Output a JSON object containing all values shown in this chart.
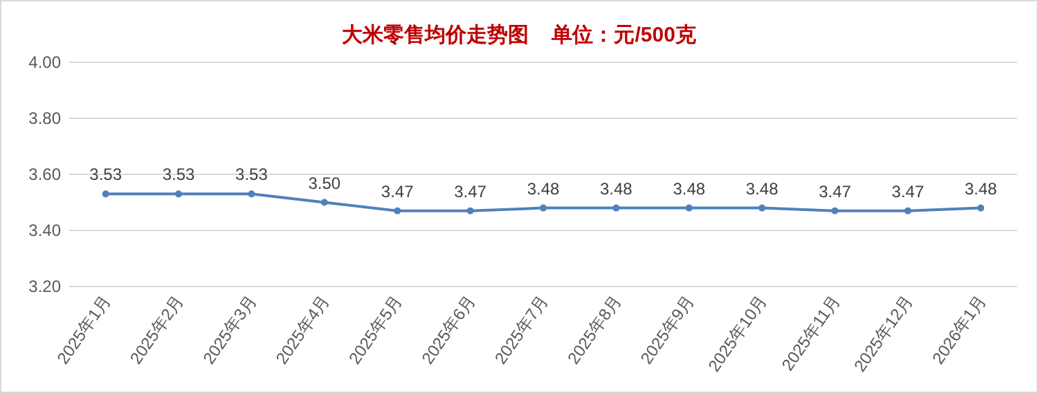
{
  "chart_data": {
    "type": "line",
    "title": "大米零售均价走势图    单位：元/500克",
    "categories": [
      "2025年1月",
      "2025年2月",
      "2025年3月",
      "2025年4月",
      "2025年5月",
      "2025年6月",
      "2025年7月",
      "2025年8月",
      "2025年9月",
      "2025年10月",
      "2025年11月",
      "2025年12月",
      "2026年1月"
    ],
    "values": [
      3.53,
      3.53,
      3.53,
      3.5,
      3.47,
      3.47,
      3.48,
      3.48,
      3.48,
      3.48,
      3.47,
      3.47,
      3.48
    ],
    "value_labels": [
      "3.53",
      "3.53",
      "3.53",
      "3.50",
      "3.47",
      "3.47",
      "3.48",
      "3.48",
      "3.48",
      "3.48",
      "3.47",
      "3.47",
      "3.48"
    ],
    "color": "#4f81bd",
    "marker": "circle",
    "grid": "y",
    "ylim": [
      3.2,
      4.0
    ],
    "yticks": [
      {
        "value": 3.2,
        "label": "3.20"
      },
      {
        "value": 3.4,
        "label": "3.40"
      },
      {
        "value": 3.6,
        "label": "3.60"
      },
      {
        "value": 3.8,
        "label": "3.80"
      },
      {
        "value": 4.0,
        "label": "4.00"
      }
    ]
  }
}
